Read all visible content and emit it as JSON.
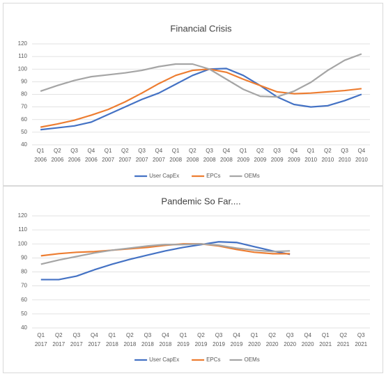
{
  "chart_data": [
    {
      "type": "line",
      "title": "Financial Crisis",
      "categories": [
        "Q1 2006",
        "Q2 2006",
        "Q3 2006",
        "Q4 2006",
        "Q1 2007",
        "Q2 2007",
        "Q3 2007",
        "Q4 2007",
        "Q1 2008",
        "Q2 2008",
        "Q3 2008",
        "Q4 2008",
        "Q1 2009",
        "Q2 2009",
        "Q3 2009",
        "Q4 2009",
        "Q1 2010",
        "Q2 2010",
        "Q3 2010",
        "Q4 2010"
      ],
      "series": [
        {
          "name": "User CapEx",
          "color": "#4472c4",
          "values": [
            52,
            53.5,
            55,
            58,
            64,
            70,
            76,
            81,
            88,
            95,
            100,
            100.5,
            95,
            87,
            78,
            72,
            70,
            71,
            75,
            80
          ]
        },
        {
          "name": "EPCs",
          "color": "#ed7d31",
          "values": [
            54,
            56.5,
            59.5,
            63.5,
            68,
            74,
            81,
            88.5,
            95,
            99,
            100,
            97.5,
            92,
            87,
            82,
            80.5,
            81,
            82,
            83,
            84.5
          ]
        },
        {
          "name": "OEMs",
          "color": "#a5a5a5",
          "values": [
            82.5,
            87,
            91,
            94,
            95.5,
            97,
            99,
            102,
            104,
            104,
            100,
            92,
            84,
            78.5,
            78,
            82.5,
            89.5,
            99,
            107,
            112
          ]
        }
      ],
      "ylim": [
        40,
        120
      ],
      "yticks": [
        40,
        50,
        60,
        70,
        80,
        90,
        100,
        110,
        120
      ],
      "grid": true,
      "legend": "bottom"
    },
    {
      "type": "line",
      "title": "Pandemic So Far....",
      "categories": [
        "Q1 2017",
        "Q2 2017",
        "Q3 2017",
        "Q4 2017",
        "Q1 2018",
        "Q2 2018",
        "Q3 2018",
        "Q4 2018",
        "Q1 2019",
        "Q2 2019",
        "Q3 2019",
        "Q4 2019",
        "Q1 2020",
        "Q2 2020",
        "Q3 2020",
        "Q4 2020",
        "Q1 2021",
        "Q2 2021",
        "Q3 2021"
      ],
      "series": [
        {
          "name": "User CapEx",
          "color": "#4472c4",
          "values": [
            74.5,
            74.5,
            77,
            81.5,
            85.5,
            89,
            92,
            95,
            97.5,
            99.5,
            101.5,
            101,
            98,
            95,
            92.5,
            null,
            null,
            null,
            null
          ]
        },
        {
          "name": "EPCs",
          "color": "#ed7d31",
          "values": [
            91.5,
            93,
            94,
            94.5,
            95.5,
            96.5,
            97.5,
            99,
            100,
            100,
            98.5,
            96,
            94,
            93,
            93,
            null,
            null,
            null,
            null
          ]
        },
        {
          "name": "OEMs",
          "color": "#a5a5a5",
          "values": [
            85.5,
            88.5,
            91,
            93.5,
            95.5,
            97,
            98.5,
            99.5,
            99.5,
            100,
            99,
            97,
            95.5,
            94.5,
            95,
            null,
            null,
            null,
            null
          ]
        }
      ],
      "ylim": [
        40,
        120
      ],
      "yticks": [
        40,
        50,
        60,
        70,
        80,
        90,
        100,
        110,
        120
      ],
      "grid": true,
      "legend": "bottom"
    }
  ]
}
